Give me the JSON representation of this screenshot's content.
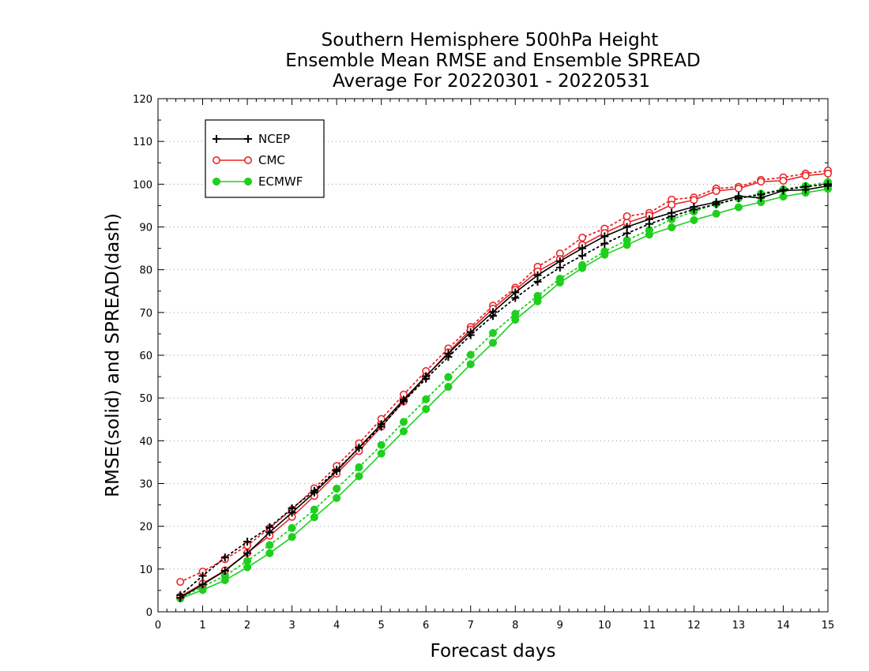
{
  "chart_data": {
    "type": "line",
    "title": [
      "Southern Hemisphere 500hPa Height",
      "Ensemble Mean RMSE and Ensemble SPREAD",
      "Average For 20220301 - 20220531"
    ],
    "xlabel": "Forecast days",
    "ylabel": "RMSE(solid) and SPREAD(dash)",
    "xlim": [
      0,
      15
    ],
    "ylim": [
      0,
      120
    ],
    "xticks": [
      "0",
      "1",
      "2",
      "3",
      "4",
      "5",
      "6",
      "7",
      "8",
      "9",
      "10",
      "11",
      "12",
      "13",
      "14",
      "15"
    ],
    "yticks": [
      "0",
      "10",
      "20",
      "30",
      "40",
      "50",
      "60",
      "70",
      "80",
      "90",
      "100",
      "110",
      "120"
    ],
    "grid": "horizontal dotted",
    "legend_position": "top-left",
    "x": [
      0.5,
      1,
      1.5,
      2,
      2.5,
      3,
      3.5,
      4,
      4.5,
      5,
      5.5,
      6,
      6.5,
      7,
      7.5,
      8,
      8.5,
      9,
      9.5,
      10,
      10.5,
      11,
      11.5,
      12,
      12.5,
      13,
      13.5,
      14,
      14.5,
      15
    ],
    "series": [
      {
        "name": "NCEP",
        "color": "#000000",
        "marker": "plus",
        "rmse": [
          3.3,
          6.4,
          9.6,
          13.7,
          18.6,
          23.2,
          27.9,
          32.9,
          38.4,
          43.9,
          49.6,
          55.1,
          60.4,
          65.4,
          70.1,
          74.7,
          78.7,
          82.0,
          85.0,
          87.8,
          90.0,
          91.8,
          93.3,
          94.7,
          95.8,
          97.2,
          96.8,
          98.5,
          98.7,
          99.6
        ],
        "spread": [
          3.9,
          8.4,
          12.7,
          16.4,
          19.8,
          24.2,
          28.3,
          33.2,
          38.3,
          43.3,
          49.2,
          54.5,
          59.6,
          64.7,
          69.2,
          73.4,
          77.2,
          80.5,
          83.3,
          86.1,
          88.5,
          90.7,
          92.5,
          94.1,
          95.3,
          96.7,
          97.6,
          98.7,
          99.4,
          100.0
        ]
      },
      {
        "name": "CMC",
        "color": "#e8262b",
        "marker": "open-circle",
        "rmse": [
          3.6,
          6.6,
          9.7,
          13.8,
          17.8,
          22.2,
          27.1,
          32.3,
          37.6,
          43.3,
          49.2,
          55.0,
          60.7,
          66.0,
          70.9,
          75.3,
          79.6,
          82.5,
          85.8,
          88.6,
          91.0,
          92.7,
          95.2,
          96.3,
          98.4,
          99.0,
          100.6,
          100.8,
          102.0,
          102.5
        ],
        "spread": [
          7.0,
          9.4,
          12.3,
          15.5,
          19.6,
          23.9,
          28.9,
          34.1,
          39.4,
          45.1,
          50.8,
          56.3,
          61.6,
          66.6,
          71.6,
          75.8,
          80.7,
          83.8,
          87.5,
          89.6,
          92.5,
          93.3,
          96.4,
          96.9,
          99.0,
          99.4,
          101.0,
          101.6,
          102.5,
          103.2
        ]
      },
      {
        "name": "ECMWF",
        "color": "#1ecf1e",
        "marker": "filled-circle",
        "rmse": [
          3.1,
          5.1,
          7.4,
          10.4,
          13.7,
          17.5,
          22.1,
          26.6,
          31.7,
          37.0,
          42.2,
          47.4,
          52.6,
          57.9,
          62.9,
          68.3,
          72.6,
          77.0,
          80.4,
          83.5,
          85.8,
          88.2,
          89.9,
          91.6,
          93.1,
          94.6,
          95.8,
          97.1,
          98.0,
          98.9
        ],
        "spread": [
          3.2,
          5.9,
          8.4,
          11.9,
          15.6,
          19.6,
          23.9,
          28.8,
          33.8,
          39.0,
          44.4,
          49.7,
          54.9,
          60.1,
          65.2,
          69.7,
          73.9,
          77.9,
          81.1,
          84.3,
          86.9,
          89.3,
          91.8,
          93.6,
          95.4,
          96.7,
          97.8,
          98.8,
          99.6,
          100.5
        ]
      }
    ]
  }
}
